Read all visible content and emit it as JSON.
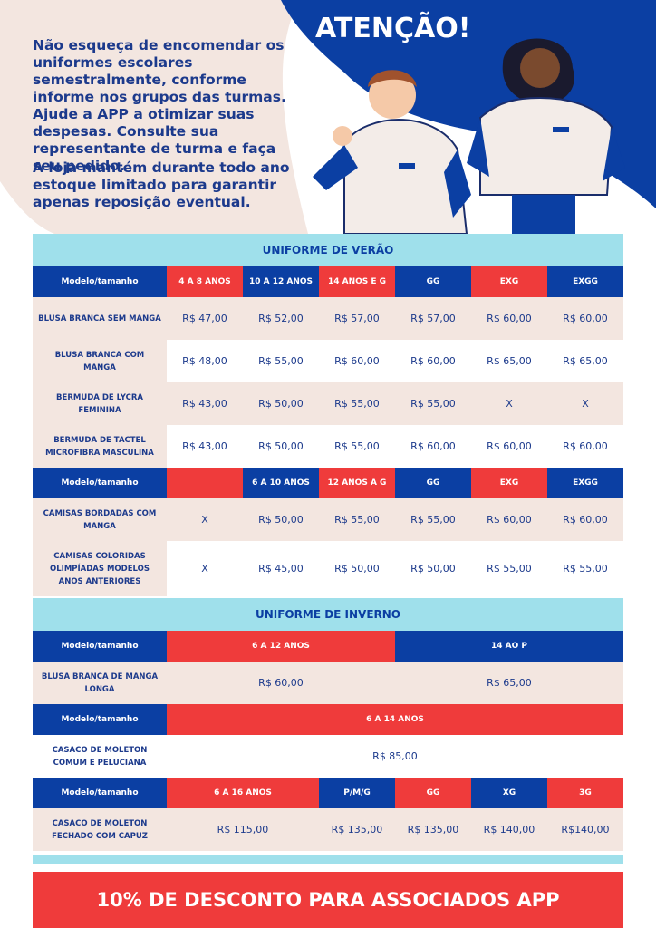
{
  "header": {
    "title": "ATENÇÃO!",
    "paragraphs": [
      "Não esqueça de encomendar os uniformes escolares semestralmente, conforme informe nos grupos das turmas. Ajude a APP a otimizar suas despesas. Consulte sua representante de turma e faça seu pedido.",
      "A loja mantém durante todo ano estoque limitado para garantir apenas reposição eventual."
    ]
  },
  "tables": [
    {
      "title": "UNIFORME DE VERÃO",
      "groups": [
        {
          "header": {
            "label": "Modelo/tamanho",
            "cells": [
              {
                "text": "4 A 8 ANOS",
                "color": "#ef3b3b"
              },
              {
                "text": "10 A 12 ANOS",
                "color": "#0b3fa3"
              },
              {
                "text": "14 ANOS E G",
                "color": "#ef3b3b"
              },
              {
                "text": "GG",
                "color": "#0b3fa3"
              },
              {
                "text": "EXG",
                "color": "#ef3b3b"
              },
              {
                "text": "EXGG",
                "color": "#0b3fa3"
              }
            ]
          },
          "rows": [
            {
              "label": "BLUSA BRANCA SEM MANGA",
              "cells": [
                {
                  "text": "R$ 47,00"
                },
                {
                  "text": "R$ 52,00"
                },
                {
                  "text": "R$ 57,00"
                },
                {
                  "text": "R$ 57,00"
                },
                {
                  "text": "R$ 60,00"
                },
                {
                  "text": "R$ 60,00"
                }
              ]
            },
            {
              "label": "BLUSA BRANCA COM MANGA",
              "cells": [
                {
                  "text": "R$ 48,00"
                },
                {
                  "text": "R$ 55,00"
                },
                {
                  "text": "R$ 60,00"
                },
                {
                  "text": "R$ 60,00"
                },
                {
                  "text": "R$ 65,00"
                },
                {
                  "text": "R$ 65,00"
                }
              ]
            },
            {
              "label": "BERMUDA DE LYCRA FEMININA",
              "cells": [
                {
                  "text": "R$ 43,00"
                },
                {
                  "text": "R$ 50,00"
                },
                {
                  "text": "R$ 55,00"
                },
                {
                  "text": "R$ 55,00"
                },
                {
                  "text": "X"
                },
                {
                  "text": "X"
                }
              ]
            },
            {
              "label": "BERMUDA DE TACTEL MICROFIBRA MASCULINA",
              "cells": [
                {
                  "text": "R$ 43,00"
                },
                {
                  "text": "R$ 50,00"
                },
                {
                  "text": "R$ 55,00"
                },
                {
                  "text": "R$ 60,00"
                },
                {
                  "text": "R$ 60,00"
                },
                {
                  "text": "R$ 60,00"
                }
              ]
            }
          ]
        },
        {
          "header": {
            "label": "Modelo/tamanho",
            "cells": [
              {
                "color": "#ef3b3b"
              },
              {
                "text": "6 A 10 ANOS",
                "color": "#0b3fa3"
              },
              {
                "text": "12 ANOS A G",
                "color": "#ef3b3b"
              },
              {
                "text": "GG",
                "color": "#0b3fa3"
              },
              {
                "text": "EXG",
                "color": "#ef3b3b"
              },
              {
                "text": "EXGG",
                "color": "#0b3fa3"
              }
            ]
          },
          "rows": [
            {
              "label": "CAMISAS BORDADAS COM MANGA",
              "cells": [
                {
                  "text": "X"
                },
                {
                  "text": "R$ 50,00"
                },
                {
                  "text": "R$ 55,00"
                },
                {
                  "text": "R$ 55,00"
                },
                {
                  "text": "R$ 60,00"
                },
                {
                  "text": "R$ 60,00"
                }
              ]
            },
            {
              "label": "CAMISAS COLORIDAS OLIMPÍADAS MODELOS ANOS ANTERIORES",
              "cells": [
                {
                  "text": "X"
                },
                {
                  "text": "R$ 45,00"
                },
                {
                  "text": "R$ 50,00"
                },
                {
                  "text": "R$ 50,00"
                },
                {
                  "text": "R$ 55,00"
                },
                {
                  "text": "R$ 55,00"
                }
              ]
            }
          ]
        }
      ]
    },
    {
      "title": "UNIFORME DE INVERNO",
      "groups": [
        {
          "header": {
            "label": "Modelo/tamanho",
            "cells": [
              {
                "text": "6 A 12 ANOS",
                "color": "#ef3b3b",
                "span": 3
              },
              {
                "text": "14 AO P",
                "color": "#0b3fa3",
                "span": 3
              }
            ]
          },
          "rows": [
            {
              "label": "BLUSA BRANCA DE MANGA LONGA",
              "cells": [
                {
                  "text": "R$ 60,00",
                  "span": 3
                },
                {
                  "text": "R$ 65,00",
                  "span": 3
                }
              ]
            }
          ]
        },
        {
          "header": {
            "label": "Modelo/tamanho",
            "cells": [
              {
                "text": "6 A 14 ANOS",
                "color": "#ef3b3b",
                "span": 6
              }
            ]
          },
          "rows": [
            {
              "label": "CASACO DE MOLETON COMUM E PELUCIANA",
              "cells": [
                {
                  "text": "R$ 85,00",
                  "span": 6
                }
              ]
            }
          ]
        },
        {
          "header": {
            "label": "Modelo/tamanho",
            "cells": [
              {
                "text": "6 A 16 ANOS",
                "color": "#ef3b3b",
                "span": 2
              },
              {
                "text": "P/M/G",
                "color": "#0b3fa3"
              },
              {
                "text": "GG",
                "color": "#ef3b3b"
              },
              {
                "text": "XG",
                "color": "#0b3fa3"
              },
              {
                "text": "3G",
                "color": "#ef3b3b"
              }
            ]
          },
          "rows": [
            {
              "label": "CASACO DE MOLETON FECHADO COM CAPUZ",
              "cells": [
                {
                  "text": "R$ 115,00",
                  "span": 2
                },
                {
                  "text": "R$ 135,00"
                },
                {
                  "text": "R$ 135,00"
                },
                {
                  "text": "R$ 140,00"
                },
                {
                  "text": "R$140,00"
                }
              ]
            }
          ]
        }
      ]
    }
  ],
  "footer": {
    "text": "10% DE DESCONTO PARA ASSOCIADOS APP"
  }
}
